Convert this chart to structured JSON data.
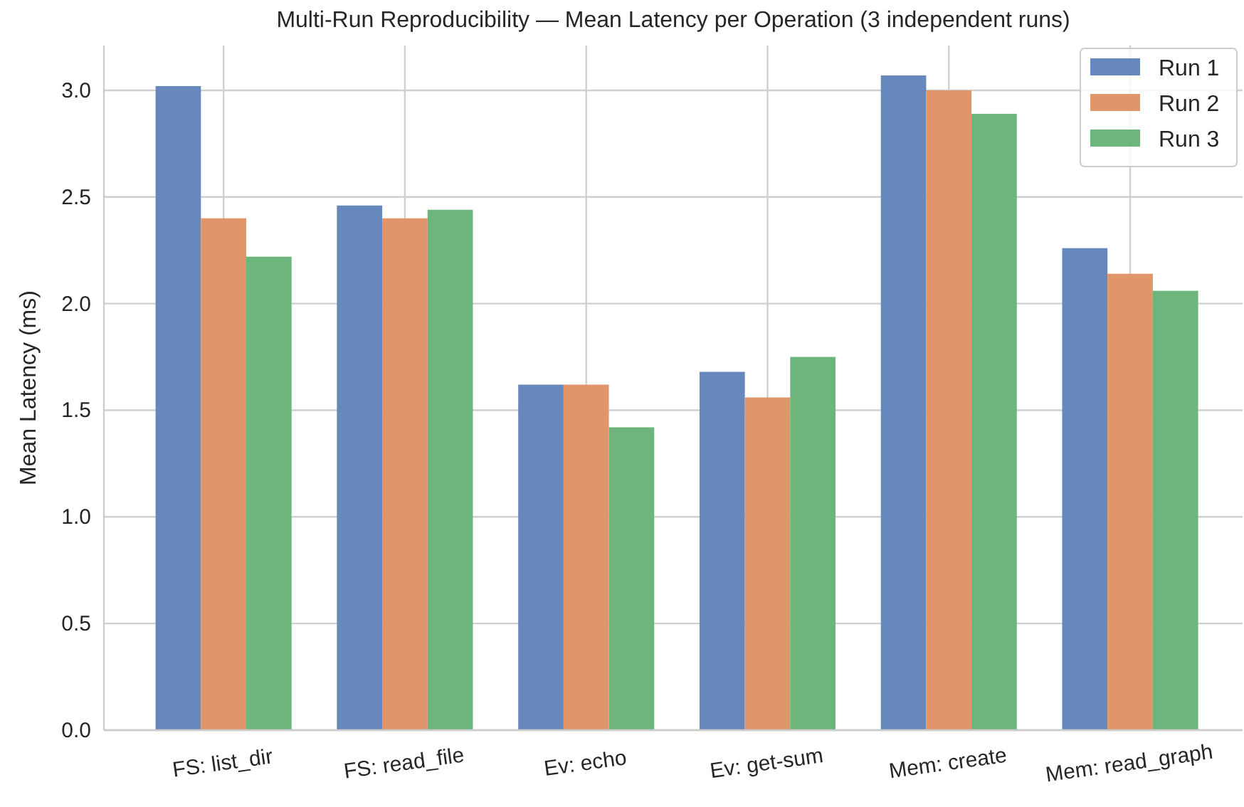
{
  "chart_data": {
    "type": "bar",
    "title": "Multi-Run Reproducibility — Mean Latency per Operation (3 independent runs)",
    "ylabel": "Mean Latency (ms)",
    "categories": [
      "FS: list_dir",
      "FS: read_file",
      "Ev: echo",
      "Ev: get-sum",
      "Mem: create",
      "Mem: read_graph"
    ],
    "series": [
      {
        "name": "Run 1",
        "color": "#6788bc",
        "values": [
          3.02,
          2.46,
          1.62,
          1.68,
          3.07,
          2.26
        ]
      },
      {
        "name": "Run 2",
        "color": "#e1956a",
        "values": [
          2.4,
          2.4,
          1.62,
          1.56,
          3.0,
          2.14
        ]
      },
      {
        "name": "Run 3",
        "color": "#6db57d",
        "values": [
          2.22,
          2.44,
          1.42,
          1.75,
          2.89,
          2.06
        ]
      }
    ],
    "ylim": [
      0,
      3.21
    ],
    "yticks": [
      {
        "value": 0,
        "label": "0.0"
      },
      {
        "value": 0.5,
        "label": "0.5"
      },
      {
        "value": 1,
        "label": "1.0"
      },
      {
        "value": 1.5,
        "label": "1.5"
      },
      {
        "value": 2,
        "label": "2.0"
      },
      {
        "value": 2.5,
        "label": "2.5"
      },
      {
        "value": 3,
        "label": "3.0"
      }
    ],
    "grid": true,
    "legend": "top right"
  }
}
